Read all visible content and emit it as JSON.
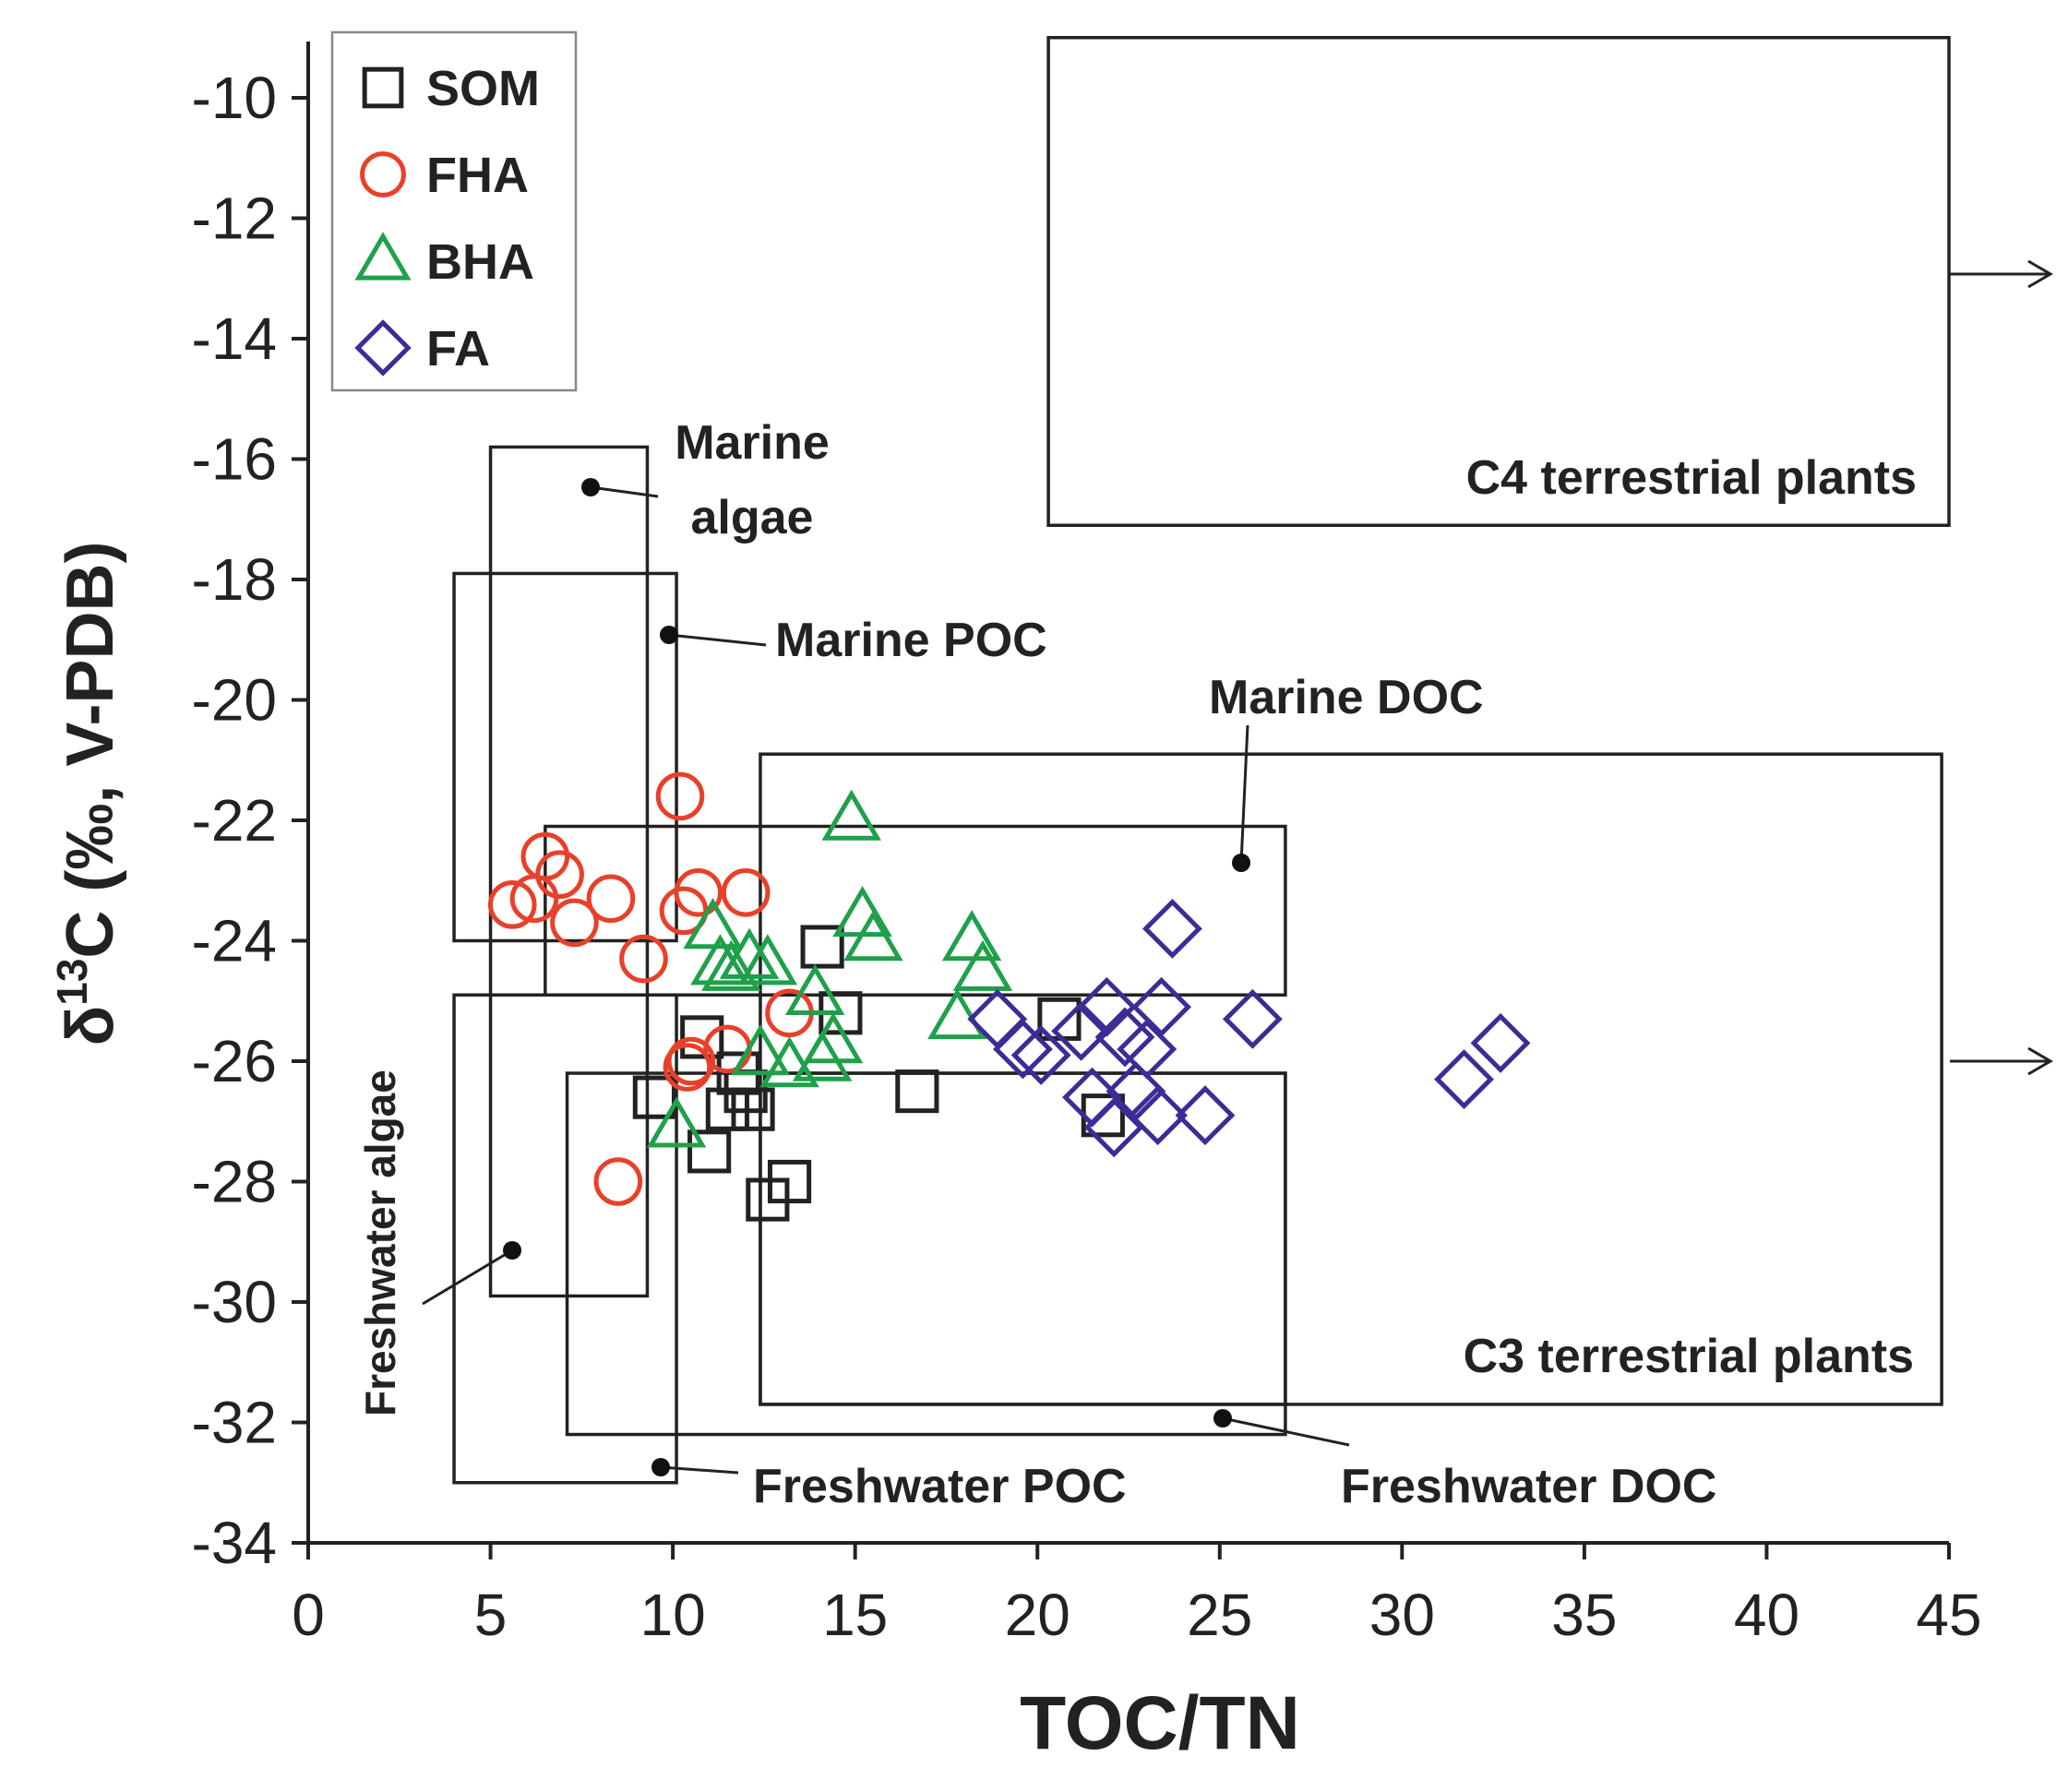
{
  "chart_data": {
    "type": "scatter",
    "xlabel": "TOC/TN",
    "ylabel_prefix": "δ",
    "ylabel_sup": "13",
    "ylabel_rest": "C (‰, V-PDB)",
    "xlim": [
      0,
      45
    ],
    "ylim": [
      -34,
      -9
    ],
    "xticks": [
      0,
      5,
      10,
      15,
      20,
      25,
      30,
      35,
      40,
      45
    ],
    "yticks": [
      -34,
      -32,
      -30,
      -28,
      -26,
      -24,
      -22,
      -20,
      -18,
      -16,
      -14,
      -12,
      -10
    ],
    "colors": {
      "SOM": "#222222",
      "FHA": "#e8402a",
      "BHA": "#1fa04a",
      "FA": "#3d2b96"
    },
    "series": [
      {
        "name": "SOM",
        "marker": "square",
        "points": [
          [
            9.5,
            -26.6
          ],
          [
            10.8,
            -25.6
          ],
          [
            11,
            -27.5
          ],
          [
            11.5,
            -26.8
          ],
          [
            11.8,
            -26.2
          ],
          [
            12,
            -26.5
          ],
          [
            12.2,
            -26.8
          ],
          [
            12.6,
            -28.3
          ],
          [
            13.2,
            -28
          ],
          [
            14.1,
            -24.1
          ],
          [
            14.6,
            -25.2
          ],
          [
            16.7,
            -26.5
          ],
          [
            20.6,
            -25.3
          ],
          [
            21.8,
            -26.9
          ]
        ]
      },
      {
        "name": "FHA",
        "marker": "circle",
        "points": [
          [
            5.6,
            -23.4
          ],
          [
            6.2,
            -23.3
          ],
          [
            6.5,
            -22.6
          ],
          [
            6.9,
            -22.9
          ],
          [
            7.3,
            -23.7
          ],
          [
            8.3,
            -23.3
          ],
          [
            8.5,
            -28
          ],
          [
            9.2,
            -24.3
          ],
          [
            10.2,
            -21.6
          ],
          [
            10.3,
            -23.5
          ],
          [
            10.4,
            -26.1
          ],
          [
            10.5,
            -26
          ],
          [
            10.7,
            -23.2
          ],
          [
            11.5,
            -25.8
          ],
          [
            12,
            -23.2
          ],
          [
            13.2,
            -25.2
          ]
        ]
      },
      {
        "name": "BHA",
        "marker": "triangle",
        "points": [
          [
            10.1,
            -27.1
          ],
          [
            11.1,
            -23.8
          ],
          [
            11.3,
            -24.4
          ],
          [
            11.6,
            -24.5
          ],
          [
            12.1,
            -24.3
          ],
          [
            12.4,
            -25.9
          ],
          [
            12.6,
            -24.4
          ],
          [
            13.2,
            -26.1
          ],
          [
            13.9,
            -24.9
          ],
          [
            14.1,
            -26
          ],
          [
            14.4,
            -25.7
          ],
          [
            14.9,
            -22
          ],
          [
            15.2,
            -23.6
          ],
          [
            15.5,
            -24
          ],
          [
            17.8,
            -25.3
          ],
          [
            18.2,
            -24
          ],
          [
            18.5,
            -24.5
          ]
        ]
      },
      {
        "name": "FA",
        "marker": "diamond",
        "points": [
          [
            18.9,
            -25.3
          ],
          [
            19.6,
            -25.8
          ],
          [
            20.1,
            -25.9
          ],
          [
            21.2,
            -25.5
          ],
          [
            21.5,
            -26.6
          ],
          [
            21.9,
            -25.1
          ],
          [
            22.1,
            -27.1
          ],
          [
            22.4,
            -25.6
          ],
          [
            22.7,
            -26.5
          ],
          [
            23,
            -25.8
          ],
          [
            23.3,
            -26.9
          ],
          [
            23.4,
            -25.1
          ],
          [
            23.7,
            -23.8
          ],
          [
            24.6,
            -26.9
          ],
          [
            25.9,
            -25.3
          ],
          [
            31.7,
            -26.3
          ],
          [
            32.7,
            -25.7
          ]
        ]
      }
    ],
    "regions": [
      {
        "label": "Marine algae",
        "x": [
          5,
          9.3
        ],
        "y": [
          -29.9,
          -15.8
        ]
      },
      {
        "label": "Marine POC",
        "x": [
          4,
          10.1
        ],
        "y": [
          -24,
          -17.9
        ]
      },
      {
        "label": "Marine DOC",
        "x": [
          6.5,
          26.8
        ],
        "y": [
          -24.9,
          -22.1
        ]
      },
      {
        "label": "Freshwater algae",
        "x": [
          4,
          10.1
        ],
        "y": [
          -33,
          -24.9
        ]
      },
      {
        "label": "Freshwater POC",
        "x": [
          7.1,
          26.8
        ],
        "y": [
          -32.2,
          -26.2
        ]
      },
      {
        "label": "Freshwater DOC",
        "x": [
          12.4,
          26.8
        ],
        "y": [
          -31.7,
          -26.2
        ]
      },
      {
        "label": "C3 terrestrial plants",
        "x": [
          12.4,
          44.8
        ],
        "y": [
          -31.7,
          -20.9
        ]
      },
      {
        "label": "C4 terrestrial plants",
        "x": [
          20.3,
          45
        ],
        "y": [
          -17.1,
          -9.0
        ]
      }
    ]
  }
}
